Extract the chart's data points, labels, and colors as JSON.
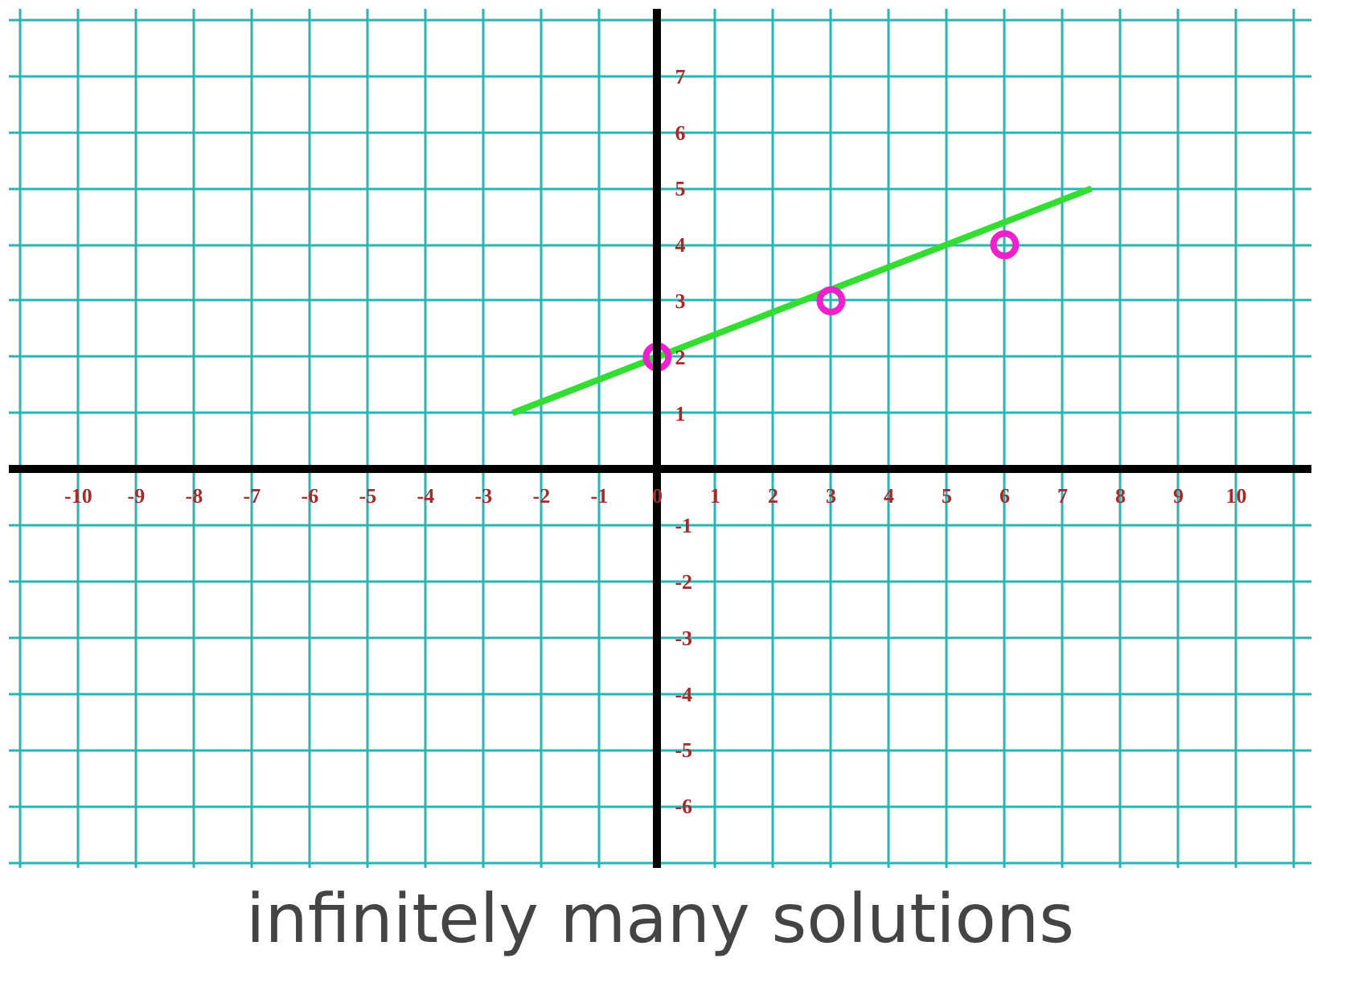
{
  "chart_data": {
    "type": "line",
    "annotations": [
      "infinitely many solutions"
    ],
    "xlim": [
      -11.2,
      11.3
    ],
    "ylim": [
      -7.1,
      8.2
    ],
    "xticks": [
      {
        "value": -11,
        "label": null
      },
      -10,
      -9,
      -8,
      -7,
      -6,
      -5,
      -4,
      -3,
      -2,
      -1,
      0,
      1,
      2,
      3,
      4,
      5,
      6,
      7,
      8,
      9,
      10,
      {
        "value": 11,
        "label": null
      }
    ],
    "yticks": [
      {
        "value": -7,
        "label": null
      },
      -6,
      -5,
      -4,
      -3,
      -2,
      -1,
      {
        "value": 0,
        "label": null
      },
      1,
      2,
      3,
      4,
      5,
      6,
      7,
      {
        "value": 8,
        "label": null
      }
    ],
    "grid": true,
    "series": [
      {
        "color": "#33dd33",
        "x": [
          -2.5,
          7.5
        ],
        "values": [
          1,
          5
        ]
      },
      {
        "type": "scatter",
        "color": "#ee22cc",
        "x": [
          0,
          3,
          6
        ],
        "values": [
          2,
          3,
          4
        ],
        "marker": "circle"
      }
    ]
  }
}
